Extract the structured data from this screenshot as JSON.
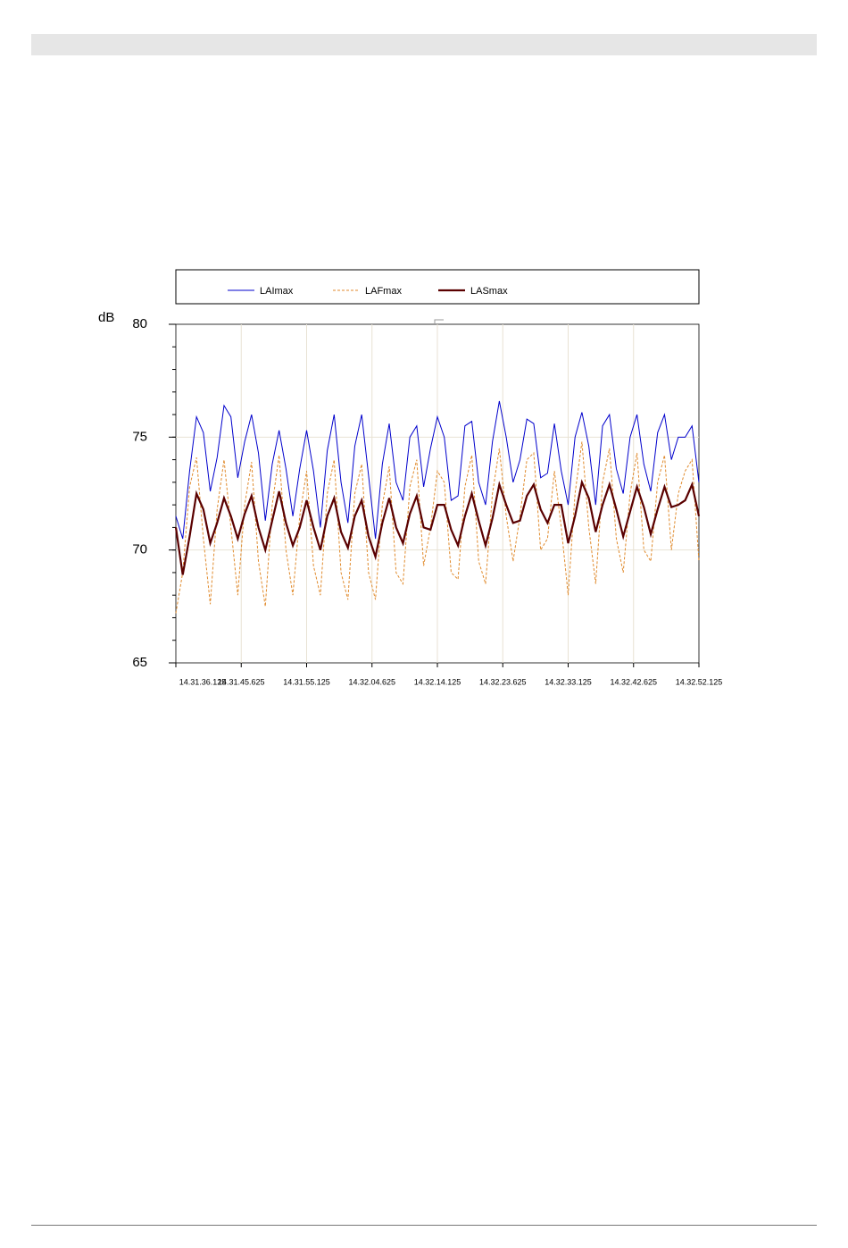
{
  "chart_data": {
    "type": "line",
    "y_label": "dB",
    "xlim": [
      0,
      76
    ],
    "ylim": [
      65,
      80
    ],
    "yticks": [
      65,
      70,
      75,
      80
    ],
    "xticks": [
      {
        "value": 0,
        "label": "14.31.36.125"
      },
      {
        "value": 9.5,
        "label": "14.31.45.625"
      },
      {
        "value": 19,
        "label": "14.31.55.125"
      },
      {
        "value": 28.5,
        "label": "14.32.04.625"
      },
      {
        "value": 38,
        "label": "14.32.14.125"
      },
      {
        "value": 47.5,
        "label": "14.32.23.625"
      },
      {
        "value": 57,
        "label": "14.32.33.125"
      },
      {
        "value": 66.5,
        "label": "14.32.42.625"
      },
      {
        "value": 76,
        "label": "14.32.52.125"
      }
    ],
    "grid": true,
    "x": [
      0,
      1,
      2,
      3,
      4,
      5,
      6,
      7,
      8,
      9,
      10,
      11,
      12,
      13,
      14,
      15,
      16,
      17,
      18,
      19,
      20,
      21,
      22,
      23,
      24,
      25,
      26,
      27,
      28,
      29,
      30,
      31,
      32,
      33,
      34,
      35,
      36,
      37,
      38,
      39,
      40,
      41,
      42,
      43,
      44,
      45,
      46,
      47,
      48,
      49,
      50,
      51,
      52,
      53,
      54,
      55,
      56,
      57,
      58,
      59,
      60,
      61,
      62,
      63,
      64,
      65,
      66,
      67,
      68,
      69,
      70,
      71,
      72,
      73,
      74,
      75,
      76
    ],
    "series": [
      {
        "name": "LAImax",
        "color": "#0000cc",
        "linestyle": "solid",
        "values": [
          71.5,
          70.5,
          73.5,
          75.9,
          75.2,
          72.6,
          74.1,
          76.4,
          75.9,
          73.2,
          74.8,
          76.0,
          74.3,
          71.3,
          73.8,
          75.3,
          73.6,
          71.5,
          73.6,
          75.3,
          73.5,
          71.0,
          74.4,
          76.0,
          73.0,
          71.2,
          74.6,
          76.0,
          73.3,
          70.5,
          73.8,
          75.6,
          73.0,
          72.2,
          75.0,
          75.5,
          72.8,
          74.5,
          75.9,
          75.0,
          72.2,
          72.4,
          75.5,
          75.7,
          73.0,
          72.0,
          74.8,
          76.6,
          75.0,
          73.0,
          74.0,
          75.8,
          75.6,
          73.2,
          73.4,
          75.6,
          73.5,
          72.0,
          75.0,
          76.1,
          74.6,
          72.0,
          75.5,
          76.0,
          73.6,
          72.5,
          75.0,
          76.0,
          73.8,
          72.6,
          75.2,
          76.0,
          74.0,
          75.0,
          75.0,
          75.5,
          73.0
        ]
      },
      {
        "name": "LAFmax",
        "color": "#e08a2c",
        "linestyle": "dashed",
        "values": [
          67.2,
          69.0,
          72.8,
          74.1,
          70.5,
          67.6,
          71.8,
          74.0,
          71.0,
          68.0,
          72.0,
          73.9,
          69.5,
          67.5,
          72.0,
          74.2,
          70.0,
          68.0,
          71.5,
          73.5,
          69.3,
          68.0,
          72.5,
          74.0,
          69.0,
          67.8,
          72.5,
          73.8,
          69.0,
          67.8,
          72.0,
          73.7,
          69.0,
          68.5,
          72.8,
          74.0,
          69.3,
          71.0,
          73.5,
          73.0,
          69.0,
          68.7,
          72.8,
          74.2,
          69.5,
          68.5,
          72.5,
          74.5,
          71.5,
          69.5,
          71.5,
          74.0,
          74.3,
          70.0,
          70.5,
          73.5,
          71.0,
          68.0,
          72.5,
          74.8,
          71.0,
          68.5,
          73.0,
          74.5,
          70.5,
          69.0,
          72.5,
          74.3,
          70.0,
          69.5,
          73.0,
          74.2,
          70.0,
          72.5,
          73.5,
          74.0,
          69.5
        ]
      },
      {
        "name": "LASmax",
        "color": "#5a0000",
        "linestyle": "bold",
        "values": [
          71.0,
          68.9,
          70.6,
          72.5,
          71.8,
          70.3,
          71.2,
          72.3,
          71.5,
          70.5,
          71.6,
          72.4,
          71.0,
          70.0,
          71.3,
          72.6,
          71.2,
          70.2,
          71.0,
          72.2,
          71.0,
          70.0,
          71.5,
          72.3,
          70.8,
          70.1,
          71.5,
          72.2,
          70.6,
          69.7,
          71.2,
          72.3,
          71.0,
          70.3,
          71.6,
          72.4,
          71.0,
          70.9,
          72.0,
          72.0,
          70.9,
          70.2,
          71.5,
          72.5,
          71.3,
          70.2,
          71.4,
          72.9,
          72.0,
          71.2,
          71.3,
          72.4,
          72.9,
          71.8,
          71.2,
          72.0,
          72.0,
          70.3,
          71.5,
          73.0,
          72.3,
          70.8,
          72.0,
          72.9,
          71.8,
          70.6,
          71.7,
          72.8,
          71.9,
          70.7,
          71.8,
          72.8,
          71.9,
          72.0,
          72.2,
          72.9,
          71.5
        ]
      }
    ]
  }
}
